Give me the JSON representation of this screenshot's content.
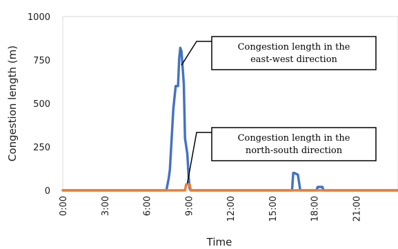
{
  "chart_data": {
    "type": "line",
    "title": "",
    "xlabel": "Time",
    "ylabel": "Congestion length (m)",
    "ylim": [
      0,
      1000
    ],
    "yticks": [
      0,
      250,
      500,
      750,
      1000
    ],
    "xlim": [
      "0:00",
      "23:59"
    ],
    "xticks": [
      "0:00",
      "3:00",
      "6:00",
      "9:00",
      "12:00",
      "15:00",
      "18:00",
      "21:00"
    ],
    "grid": false,
    "series": [
      {
        "name": "Congestion length in the east-west direction",
        "color": "#4472C4",
        "x": [
          "0:00",
          "7:00",
          "7:05",
          "7:25",
          "7:35",
          "7:40",
          "7:55",
          "8:05",
          "8:15",
          "8:20",
          "8:25",
          "8:30",
          "8:40",
          "8:45",
          "8:55",
          "9:00",
          "9:05",
          "9:10",
          "16:20",
          "16:25",
          "16:30",
          "16:35",
          "16:50",
          "17:00",
          "18:10",
          "18:15",
          "18:20",
          "18:35",
          "18:40",
          "23:59"
        ],
        "values": [
          0,
          0,
          0,
          0,
          70,
          120,
          470,
          600,
          600,
          760,
          820,
          800,
          610,
          300,
          210,
          90,
          10,
          0,
          0,
          0,
          100,
          100,
          90,
          0,
          0,
          20,
          20,
          20,
          0,
          0
        ]
      },
      {
        "name": "Congestion length in the north-south direction",
        "color": "#ED7D31",
        "x": [
          "0:00",
          "8:45",
          "8:50",
          "9:05",
          "9:10",
          "23:59"
        ],
        "values": [
          0,
          0,
          35,
          35,
          0,
          0
        ]
      }
    ],
    "annotations": [
      {
        "text": "Congestion length in the east-west direction",
        "lines": [
          "Congestion length in the",
          "east-west direction"
        ],
        "series": 0,
        "x": "8:30",
        "y": 720
      },
      {
        "text": "Congestion length in the north-south direction",
        "lines": [
          "Congestion length in the",
          "north-south direction"
        ],
        "series": 1,
        "x": "8:55",
        "y": 40
      }
    ]
  }
}
